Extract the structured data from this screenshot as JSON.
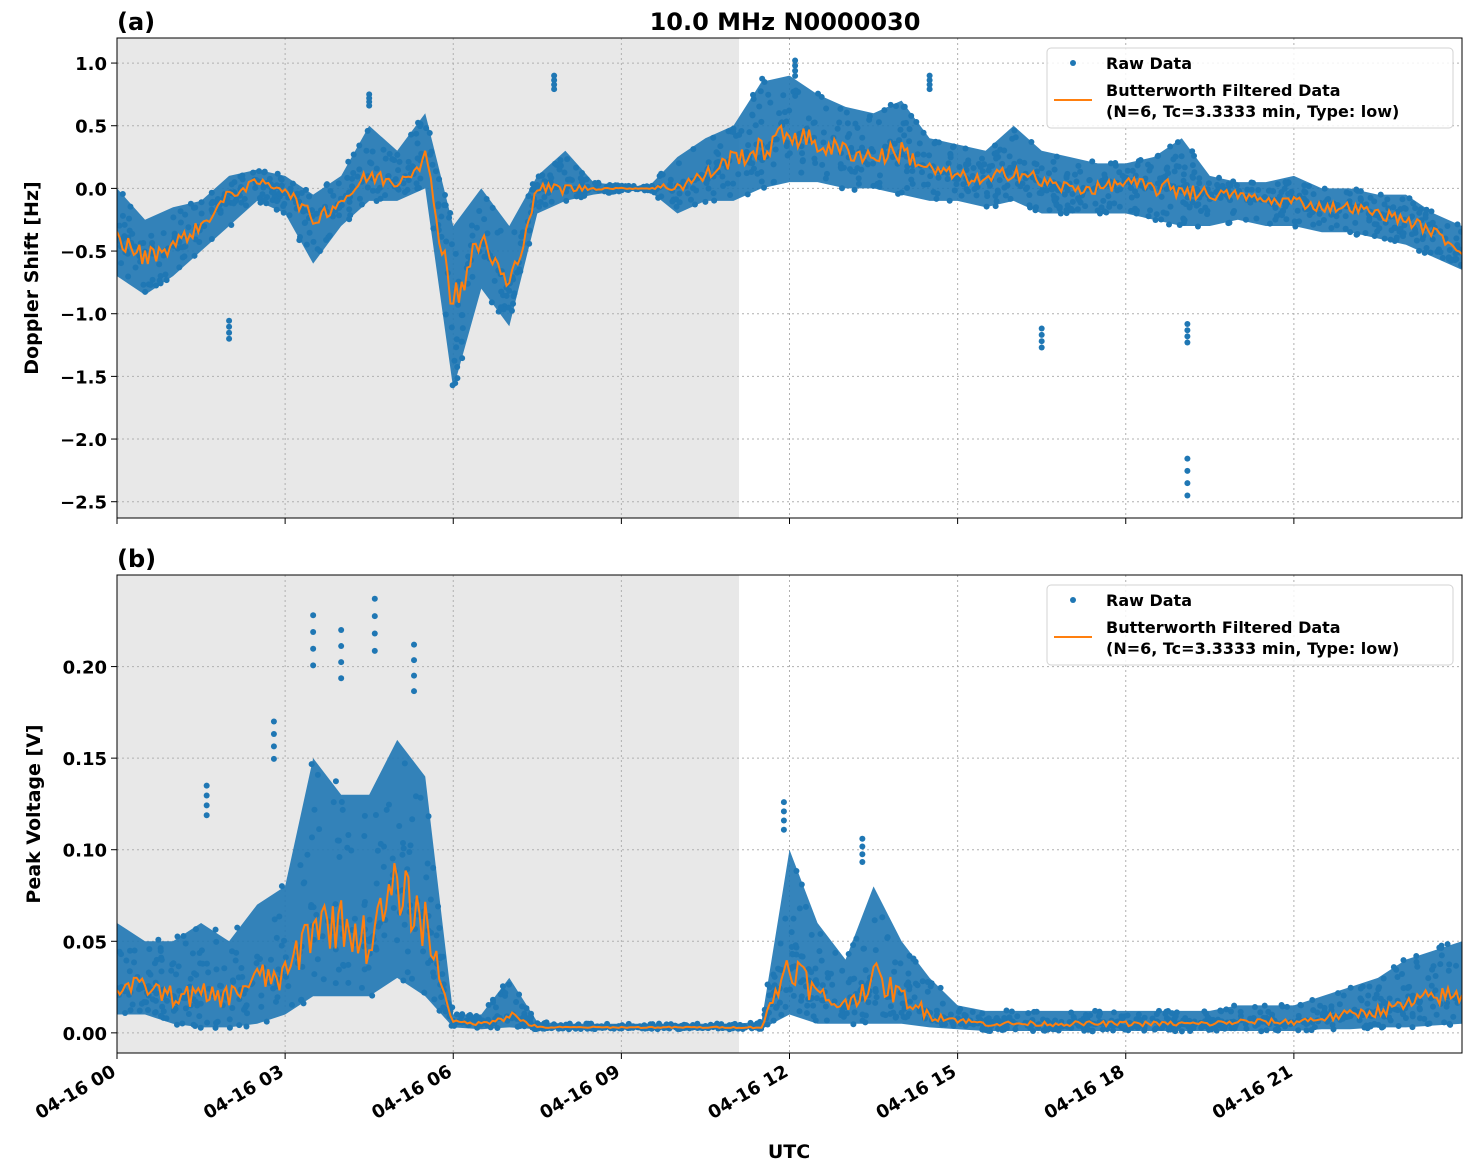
{
  "title": "10.0 MHz N0000030",
  "colors": {
    "raw": "#1f77b4",
    "filtered": "#ff7f0e",
    "night_shade": "#e8e8e8"
  },
  "chart_data": [
    {
      "type": "scatter",
      "panel_label": "(a)",
      "title": "10.0 MHz N0000030",
      "xlabel": "",
      "ylabel": "Doppler Shift [Hz]",
      "xlim_hours_utc": [
        0,
        24
      ],
      "ylim": [
        -2.63,
        1.2
      ],
      "grid": true,
      "legend_placement": "top-right",
      "legend": [
        "Raw Data",
        "Butterworth Filtered Data\n(N=6, Tc=3.3333 min, Type: low)"
      ],
      "legend_line1": "Raw Data",
      "legend_line2a": "Butterworth Filtered Data",
      "legend_line2b": "(N=6, Tc=3.3333 min, Type: low)",
      "shaded_region_hours_utc": [
        0,
        11.1
      ],
      "yticks": [
        1.0,
        0.5,
        0.0,
        -0.5,
        -1.0,
        -1.5,
        -2.0,
        -2.5
      ],
      "ytick_labels": [
        "1.0",
        "0.5",
        "0.0",
        "−0.5",
        "−1.0",
        "−1.5",
        "−2.0",
        "−2.5"
      ],
      "x_hours": [
        0,
        0.5,
        1,
        1.5,
        2,
        2.5,
        3,
        3.5,
        4,
        4.5,
        5,
        5.5,
        6,
        6.5,
        7,
        7.5,
        8,
        8.5,
        9,
        9.5,
        10,
        10.5,
        11,
        11.5,
        12,
        12.5,
        13,
        13.5,
        14,
        14.5,
        15,
        15.5,
        16,
        16.5,
        17,
        17.5,
        18,
        18.5,
        19,
        19.5,
        20,
        20.5,
        21,
        21.5,
        22,
        22.5,
        23,
        23.5,
        24
      ],
      "filtered": [
        -0.4,
        -0.55,
        -0.45,
        -0.3,
        -0.05,
        0.05,
        0.0,
        -0.25,
        -0.1,
        0.1,
        0.05,
        0.25,
        -0.9,
        -0.4,
        -0.8,
        0.0,
        0.0,
        0.0,
        0.0,
        0.0,
        0.02,
        0.1,
        0.25,
        0.3,
        0.45,
        0.35,
        0.3,
        0.25,
        0.3,
        0.15,
        0.1,
        0.05,
        0.15,
        0.05,
        0.0,
        0.0,
        0.05,
        0.0,
        0.0,
        -0.05,
        -0.05,
        -0.1,
        -0.1,
        -0.15,
        -0.15,
        -0.2,
        -0.25,
        -0.35,
        -0.5
      ],
      "raw_min": [
        -0.7,
        -0.85,
        -0.7,
        -0.5,
        -0.3,
        -0.1,
        -0.2,
        -0.6,
        -0.3,
        -0.1,
        -0.1,
        0.0,
        -1.6,
        -0.8,
        -1.1,
        -0.2,
        -0.1,
        -0.05,
        -0.02,
        -0.02,
        -0.2,
        -0.1,
        -0.1,
        0.0,
        0.05,
        0.05,
        0.0,
        0.0,
        -0.05,
        -0.1,
        -0.1,
        -0.15,
        -0.1,
        -0.2,
        -0.2,
        -0.2,
        -0.2,
        -0.25,
        -0.3,
        -0.3,
        -0.25,
        -0.3,
        -0.3,
        -0.35,
        -0.35,
        -0.4,
        -0.45,
        -0.55,
        -0.65
      ],
      "raw_max": [
        0.0,
        -0.25,
        -0.15,
        -0.1,
        0.1,
        0.15,
        0.1,
        -0.05,
        0.1,
        0.5,
        0.3,
        0.6,
        -0.3,
        0.0,
        -0.3,
        0.1,
        0.3,
        0.05,
        0.02,
        0.02,
        0.25,
        0.4,
        0.5,
        0.85,
        0.9,
        0.75,
        0.65,
        0.6,
        0.7,
        0.4,
        0.35,
        0.3,
        0.5,
        0.3,
        0.25,
        0.2,
        0.2,
        0.25,
        0.4,
        0.1,
        0.05,
        0.05,
        0.1,
        0.0,
        0.0,
        -0.05,
        -0.05,
        -0.2,
        -0.3
      ],
      "outliers": [
        [
          2.0,
          -1.2
        ],
        [
          4.5,
          0.75
        ],
        [
          7.8,
          0.9
        ],
        [
          16.5,
          -1.27
        ],
        [
          19.1,
          -2.45
        ],
        [
          19.1,
          -1.23
        ],
        [
          12.1,
          1.02
        ],
        [
          14.5,
          0.9
        ]
      ]
    },
    {
      "type": "scatter",
      "panel_label": "(b)",
      "xlabel": "UTC",
      "ylabel": "Peak Voltage [V]",
      "xlim_hours_utc": [
        0,
        24
      ],
      "ylim": [
        -0.011,
        0.25
      ],
      "grid": true,
      "legend_placement": "top-right",
      "legend_line1": "Raw Data",
      "legend_line2a": "Butterworth Filtered Data",
      "legend_line2b": "(N=6, Tc=3.3333 min, Type: low)",
      "shaded_region_hours_utc": [
        0,
        11.1
      ],
      "yticks": [
        0.0,
        0.05,
        0.1,
        0.15,
        0.2
      ],
      "ytick_labels": [
        "0.00",
        "0.05",
        "0.10",
        "0.15",
        "0.20"
      ],
      "xticks_hours": [
        0,
        3,
        6,
        9,
        12,
        15,
        18,
        21
      ],
      "xtick_labels": [
        "04-16 00",
        "04-16 03",
        "04-16 06",
        "04-16 09",
        "04-16 12",
        "04-16 15",
        "04-16 18",
        "04-16 21"
      ],
      "x_hours": [
        0,
        0.5,
        1,
        1.5,
        2,
        2.5,
        3,
        3.5,
        4,
        4.5,
        5,
        5.5,
        6,
        6.5,
        7,
        7.5,
        8,
        8.5,
        9,
        9.5,
        10,
        10.5,
        11,
        11.5,
        12,
        12.5,
        13,
        13.5,
        14,
        14.5,
        15,
        15.5,
        16,
        16.5,
        17,
        17.5,
        18,
        18.5,
        19,
        19.5,
        20,
        20.5,
        21,
        21.5,
        22,
        22.5,
        23,
        23.5,
        24
      ],
      "filtered": [
        0.025,
        0.025,
        0.02,
        0.02,
        0.02,
        0.03,
        0.03,
        0.06,
        0.06,
        0.05,
        0.08,
        0.06,
        0.006,
        0.005,
        0.01,
        0.003,
        0.003,
        0.003,
        0.003,
        0.003,
        0.003,
        0.003,
        0.003,
        0.003,
        0.04,
        0.02,
        0.015,
        0.03,
        0.02,
        0.01,
        0.007,
        0.005,
        0.005,
        0.005,
        0.005,
        0.005,
        0.005,
        0.005,
        0.005,
        0.005,
        0.006,
        0.006,
        0.006,
        0.008,
        0.01,
        0.012,
        0.015,
        0.02,
        0.02
      ],
      "raw_min": [
        0.01,
        0.01,
        0.005,
        0.003,
        0.003,
        0.005,
        0.01,
        0.02,
        0.02,
        0.02,
        0.03,
        0.02,
        0.003,
        0.002,
        0.003,
        0.002,
        0.002,
        0.002,
        0.002,
        0.002,
        0.002,
        0.002,
        0.002,
        0.002,
        0.01,
        0.005,
        0.005,
        0.005,
        0.005,
        0.003,
        0.002,
        0.001,
        0.001,
        0.001,
        0.001,
        0.001,
        0.001,
        0.001,
        0.001,
        0.001,
        0.001,
        0.001,
        0.001,
        0.002,
        0.002,
        0.003,
        0.003,
        0.004,
        0.005
      ],
      "raw_max": [
        0.06,
        0.05,
        0.05,
        0.06,
        0.05,
        0.07,
        0.08,
        0.15,
        0.13,
        0.13,
        0.16,
        0.14,
        0.01,
        0.01,
        0.03,
        0.006,
        0.005,
        0.005,
        0.005,
        0.005,
        0.005,
        0.005,
        0.005,
        0.006,
        0.1,
        0.06,
        0.04,
        0.08,
        0.05,
        0.03,
        0.015,
        0.012,
        0.012,
        0.012,
        0.012,
        0.012,
        0.012,
        0.012,
        0.012,
        0.012,
        0.015,
        0.015,
        0.015,
        0.02,
        0.025,
        0.03,
        0.04,
        0.045,
        0.05
      ],
      "outliers": [
        [
          1.6,
          0.135
        ],
        [
          3.5,
          0.228
        ],
        [
          4.0,
          0.22
        ],
        [
          4.6,
          0.237
        ],
        [
          5.3,
          0.212
        ],
        [
          2.8,
          0.17
        ],
        [
          11.9,
          0.126
        ],
        [
          13.3,
          0.106
        ]
      ]
    }
  ]
}
